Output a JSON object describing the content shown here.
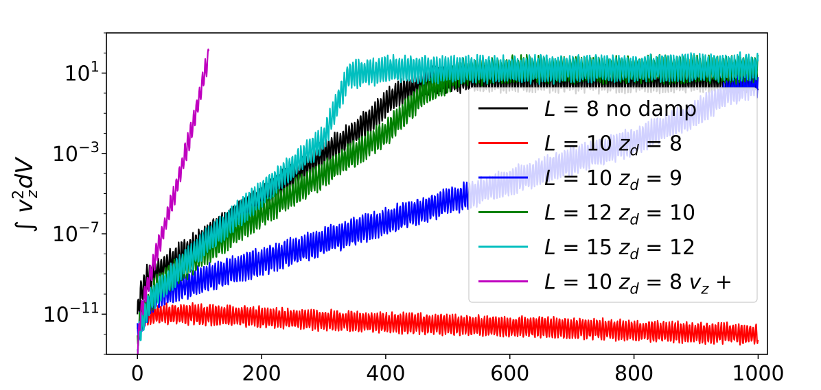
{
  "chart_data": {
    "type": "line",
    "title": "",
    "xlabel": "",
    "ylabel": "∫ v_z² dV",
    "ylabel_parts": {
      "pre": "∫ ",
      "v": "v",
      "sub": "z",
      "sup": "2",
      "post": "dV"
    },
    "x_scale": "linear",
    "y_scale": "log",
    "xlim": [
      -50,
      1015
    ],
    "ylim": [
      1e-13,
      1000.0
    ],
    "x_ticks": [
      0,
      200,
      400,
      600,
      800,
      1000
    ],
    "x_tick_labels": [
      "0",
      "200",
      "400",
      "600",
      "800",
      "1000"
    ],
    "y_ticks": [
      1e-11,
      1e-07,
      0.001,
      10
    ],
    "y_tick_labels": [
      {
        "base": "10",
        "exp": "−11"
      },
      {
        "base": "10",
        "exp": "−7"
      },
      {
        "base": "10",
        "exp": "−3"
      },
      {
        "base": "10",
        "exp": "1"
      }
    ],
    "grid": false,
    "legend": {
      "position": "center-right"
    },
    "series": [
      {
        "name": "L = 8 no damp",
        "label": {
          "a": "L",
          "b": " = 8 no damp"
        },
        "color": "#000000",
        "points": [
          [
            0,
            1e-11
          ],
          [
            5,
            1e-10
          ],
          [
            15,
            6e-10
          ],
          [
            50,
            3e-09
          ],
          [
            100,
            4e-08
          ],
          [
            200,
            5e-06
          ],
          [
            300,
            0.001
          ],
          [
            350,
            0.01
          ],
          [
            420,
            1
          ],
          [
            480,
            5
          ],
          [
            600,
            5
          ],
          [
            800,
            5
          ],
          [
            1000,
            5
          ]
        ],
        "osc": 1.2,
        "x_end": 1000
      },
      {
        "name": "L = 10 z_d = 8",
        "label": {
          "a": "L",
          "b": " = 10 ",
          "c": "z",
          "d": "d",
          "e": " = 8"
        },
        "color": "#ff0000",
        "points": [
          [
            0,
            1e-12
          ],
          [
            10,
            8e-12
          ],
          [
            30,
            1e-11
          ],
          [
            100,
            1e-11
          ],
          [
            300,
            5e-12
          ],
          [
            500,
            3e-12
          ],
          [
            700,
            2e-12
          ],
          [
            900,
            1.2e-12
          ],
          [
            1000,
            1e-12
          ]
        ],
        "osc": 0.9,
        "x_end": 1000
      },
      {
        "name": "L = 10 z_d = 9",
        "label": {
          "a": "L",
          "b": " = 10 ",
          "c": "z",
          "d": "d",
          "e": " = 9"
        },
        "color": "#0000ff",
        "points": [
          [
            0,
            1e-12
          ],
          [
            10,
            1e-11
          ],
          [
            30,
            8e-11
          ],
          [
            100,
            5e-10
          ],
          [
            200,
            4e-09
          ],
          [
            300,
            4e-08
          ],
          [
            400,
            4e-07
          ],
          [
            500,
            4e-06
          ],
          [
            600,
            4e-05
          ],
          [
            700,
            0.0004
          ],
          [
            800,
            0.004
          ],
          [
            900,
            0.1
          ],
          [
            950,
            1
          ],
          [
            1000,
            3
          ]
        ],
        "osc": 1.2,
        "x_end": 1000
      },
      {
        "name": "L = 12 z_d = 10",
        "label": {
          "a": "L",
          "b": " = 12 ",
          "c": "z",
          "d": "d",
          "e": " = 10"
        },
        "color": "#008000",
        "points": [
          [
            0,
            1e-12
          ],
          [
            10,
            1e-11
          ],
          [
            30,
            2e-10
          ],
          [
            100,
            8e-09
          ],
          [
            200,
            1e-06
          ],
          [
            300,
            0.0001
          ],
          [
            400,
            0.01
          ],
          [
            460,
            1
          ],
          [
            520,
            10
          ],
          [
            600,
            15
          ],
          [
            1000,
            15
          ]
        ],
        "osc": 1.2,
        "x_end": 1000
      },
      {
        "name": "L = 15 z_d = 12",
        "label": {
          "a": "L",
          "b": " = 15 ",
          "c": "z",
          "d": "d",
          "e": " = 12"
        },
        "color": "#00bfbf",
        "points": [
          [
            0,
            5e-13
          ],
          [
            10,
            5e-12
          ],
          [
            20,
            5e-11
          ],
          [
            100,
            2e-08
          ],
          [
            200,
            1e-05
          ],
          [
            300,
            0.005
          ],
          [
            340,
            8
          ],
          [
            400,
            15
          ],
          [
            600,
            15
          ],
          [
            1000,
            20
          ]
        ],
        "osc": 1.2,
        "x_end": 1000
      },
      {
        "name": "L = 10 z_d = 8 v_z +",
        "label": {
          "a": "L",
          "b": " = 10 ",
          "c": "z",
          "d": "d",
          "e": " = 8 ",
          "f": "v",
          "g": "z",
          "h": " +"
        },
        "color": "#bf00bf",
        "points": [
          [
            0,
            1e-13
          ],
          [
            5,
            1e-11
          ],
          [
            15,
            2e-10
          ],
          [
            30,
            1e-08
          ],
          [
            60,
            1e-05
          ],
          [
            90,
            0.03
          ],
          [
            115,
            80
          ]
        ],
        "osc": 1.0,
        "x_end": 115
      }
    ]
  }
}
